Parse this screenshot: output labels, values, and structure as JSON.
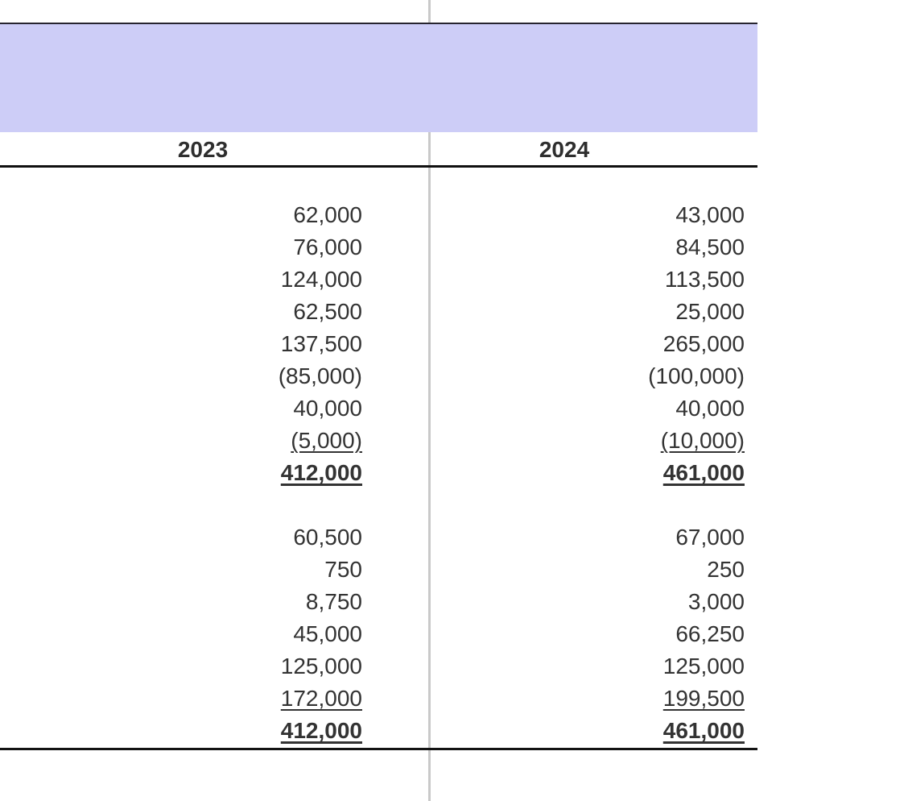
{
  "document": {
    "kind": "financial-statement-table",
    "title_band_text": ""
  },
  "colors": {
    "title_band": "#cdcdf7",
    "top_rule": "#26242f",
    "header_rule": "#101010",
    "bottom_rule": "#131313",
    "column_divider": "#c9c9c9",
    "number_text": "#333333",
    "header_text": "#2e2e2e"
  },
  "table": {
    "columns": [
      {
        "year": "2023"
      },
      {
        "year": "2024"
      }
    ],
    "rows_2023": [
      {
        "value": "62,000",
        "style": "normal"
      },
      {
        "value": "76,000",
        "style": "normal"
      },
      {
        "value": "124,000",
        "style": "normal"
      },
      {
        "value": "62,500",
        "style": "normal"
      },
      {
        "value": "137,500",
        "style": "normal"
      },
      {
        "value": "(85,000)",
        "style": "normal"
      },
      {
        "value": "40,000",
        "style": "normal"
      },
      {
        "value": "(5,000)",
        "style": "underline"
      },
      {
        "value": "412,000",
        "style": "total"
      },
      {
        "value": "",
        "style": "spacer"
      },
      {
        "value": "60,500",
        "style": "normal"
      },
      {
        "value": "750",
        "style": "normal"
      },
      {
        "value": "8,750",
        "style": "normal"
      },
      {
        "value": "45,000",
        "style": "normal"
      },
      {
        "value": "125,000",
        "style": "normal"
      },
      {
        "value": "172,000",
        "style": "underline"
      },
      {
        "value": "412,000",
        "style": "total"
      }
    ],
    "rows_2024": [
      {
        "value": "43,000",
        "style": "normal"
      },
      {
        "value": "84,500",
        "style": "normal"
      },
      {
        "value": "113,500",
        "style": "normal"
      },
      {
        "value": "25,000",
        "style": "normal"
      },
      {
        "value": "265,000",
        "style": "normal"
      },
      {
        "value": "(100,000)",
        "style": "normal"
      },
      {
        "value": "40,000",
        "style": "normal"
      },
      {
        "value": "(10,000)",
        "style": "underline"
      },
      {
        "value": "461,000",
        "style": "total"
      },
      {
        "value": "",
        "style": "spacer"
      },
      {
        "value": "67,000",
        "style": "normal"
      },
      {
        "value": "250",
        "style": "normal"
      },
      {
        "value": "3,000",
        "style": "normal"
      },
      {
        "value": "66,250",
        "style": "normal"
      },
      {
        "value": "125,000",
        "style": "normal"
      },
      {
        "value": "199,500",
        "style": "underline"
      },
      {
        "value": "461,000",
        "style": "total"
      }
    ]
  }
}
